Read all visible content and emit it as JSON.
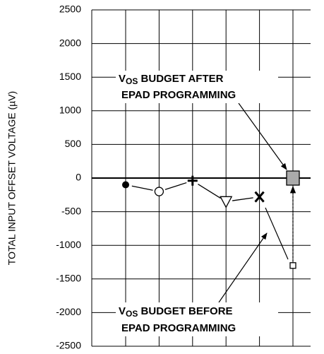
{
  "chart_data": {
    "type": "line",
    "y_label": "TOTAL INPUT OFFSET VOLTAGE (µV)",
    "categories": [
      null,
      null,
      null,
      null,
      null,
      null
    ],
    "ylim": [
      -2500,
      2500
    ],
    "yticks": [
      -2500,
      -2000,
      -1500,
      -1000,
      -500,
      0,
      500,
      1000,
      1500,
      2000,
      2500
    ],
    "grid": true,
    "series": [
      {
        "color": "#000000",
        "connected": true,
        "markers": [
          "filled-circle",
          "open-circle",
          "plus",
          "down-triangle",
          "x",
          null
        ],
        "values": [
          -100,
          -200,
          -40,
          -350,
          -280,
          null
        ]
      },
      {
        "color": "#000000",
        "connected": false,
        "markers": [
          null,
          null,
          null,
          null,
          null,
          "small-square"
        ],
        "values": [
          null,
          null,
          null,
          null,
          null,
          -1300
        ]
      },
      {
        "color": "#aaaaaa",
        "connected": false,
        "markers": [
          null,
          null,
          null,
          null,
          null,
          "big-square"
        ],
        "values": [
          null,
          null,
          null,
          null,
          null,
          0
        ]
      }
    ],
    "annotations": [
      {
        "symbol": "V",
        "subscript": "OS",
        "text": " BUDGET AFTER",
        "text2": "EPAD PROGRAMMING"
      },
      {
        "symbol": "V",
        "subscript": "OS",
        "text": " BUDGET BEFORE",
        "text2": "EPAD PROGRAMMING"
      }
    ]
  }
}
